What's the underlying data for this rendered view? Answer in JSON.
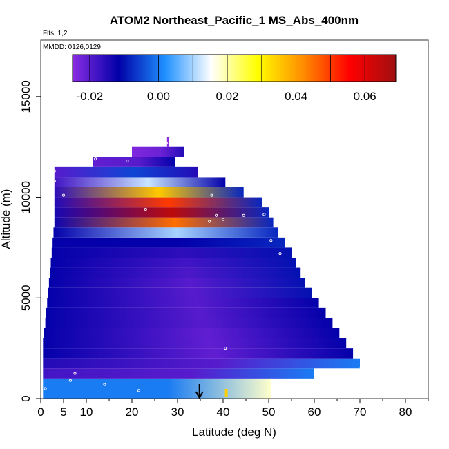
{
  "chart_data": {
    "type": "heatmap",
    "title": "ATOM2 Northeast_Pacific_1 MS_Abs_400nm",
    "annotations": [
      "Flts: 1,2",
      "MMDD: 0126,0129"
    ],
    "xlabel": "Latitude (deg N)",
    "ylabel": "Altitude (m)",
    "xlim": [
      0,
      85
    ],
    "ylim": [
      0,
      17500
    ],
    "xticks": [
      0,
      5,
      10,
      20,
      30,
      40,
      50,
      60,
      70,
      80
    ],
    "xtick_labels": [
      "0",
      "5",
      "10",
      "20",
      "30",
      "40",
      "50",
      "60",
      "70",
      "80"
    ],
    "yticks": [
      0,
      5000,
      10000,
      15000
    ],
    "ytick_labels": [
      "0",
      "5000",
      "10000",
      "15000"
    ],
    "colorbar": {
      "range": [
        -0.025,
        0.069
      ],
      "ticks": [
        -0.02,
        0.0,
        0.02,
        0.04,
        0.06
      ],
      "tick_labels": [
        "-0.02",
        "0.00",
        "0.02",
        "0.04",
        "0.06"
      ],
      "colors": [
        "#8a2be2",
        "#0000a8",
        "#1e90ff",
        "#ffffff",
        "#ffff00",
        "#ff8c00",
        "#ff0000",
        "#a01010"
      ]
    },
    "rows": [
      {
        "alt_min": 0,
        "alt_max": 1000,
        "lat_min": 0.5,
        "lat_max": 50.5,
        "v_south": 0.0,
        "v_mid": 0.0,
        "v_north": 0.018
      },
      {
        "alt_min": 1000,
        "alt_max": 1500,
        "lat_min": 0.5,
        "lat_max": 60,
        "v_south": -0.018,
        "v_mid": -0.02,
        "v_north": 0.0
      },
      {
        "alt_min": 1500,
        "alt_max": 2000,
        "lat_min": 0.5,
        "lat_max": 70,
        "v_south": -0.015,
        "v_mid": -0.02,
        "v_north": 0.0
      },
      {
        "alt_min": 2000,
        "alt_max": 2500,
        "lat_min": 0.5,
        "lat_max": 68.5,
        "v_south": -0.012,
        "v_mid": -0.021,
        "v_north": -0.012
      },
      {
        "alt_min": 2500,
        "alt_max": 3000,
        "lat_min": 0.5,
        "lat_max": 67,
        "v_south": -0.012,
        "v_mid": -0.021,
        "v_north": -0.012
      },
      {
        "alt_min": 3000,
        "alt_max": 3500,
        "lat_min": 0.7,
        "lat_max": 65.5,
        "v_south": -0.012,
        "v_mid": -0.021,
        "v_north": -0.012
      },
      {
        "alt_min": 3500,
        "alt_max": 4000,
        "lat_min": 1.0,
        "lat_max": 64,
        "v_south": -0.012,
        "v_mid": -0.02,
        "v_north": -0.012
      },
      {
        "alt_min": 4000,
        "alt_max": 4500,
        "lat_min": 1.2,
        "lat_max": 62.5,
        "v_south": -0.012,
        "v_mid": -0.02,
        "v_north": -0.012
      },
      {
        "alt_min": 4500,
        "alt_max": 5000,
        "lat_min": 1.4,
        "lat_max": 61,
        "v_south": -0.012,
        "v_mid": -0.02,
        "v_north": -0.012
      },
      {
        "alt_min": 5000,
        "alt_max": 5500,
        "lat_min": 1.6,
        "lat_max": 59.5,
        "v_south": -0.012,
        "v_mid": -0.02,
        "v_north": -0.01
      },
      {
        "alt_min": 5500,
        "alt_max": 6000,
        "lat_min": 1.8,
        "lat_max": 58,
        "v_south": -0.012,
        "v_mid": -0.02,
        "v_north": -0.01
      },
      {
        "alt_min": 6000,
        "alt_max": 6500,
        "lat_min": 2.0,
        "lat_max": 57,
        "v_south": -0.012,
        "v_mid": -0.019,
        "v_north": -0.01
      },
      {
        "alt_min": 6500,
        "alt_max": 7000,
        "lat_min": 2.2,
        "lat_max": 56,
        "v_south": -0.012,
        "v_mid": -0.018,
        "v_north": -0.01
      },
      {
        "alt_min": 7000,
        "alt_max": 7500,
        "lat_min": 2.4,
        "lat_max": 55,
        "v_south": -0.012,
        "v_mid": -0.016,
        "v_north": -0.01
      },
      {
        "alt_min": 7500,
        "alt_max": 8000,
        "lat_min": 2.6,
        "lat_max": 53.5,
        "v_south": -0.012,
        "v_mid": -0.012,
        "v_north": -0.008
      },
      {
        "alt_min": 8000,
        "alt_max": 8500,
        "lat_min": 2.8,
        "lat_max": 52,
        "v_south": -0.012,
        "v_mid": 0.01,
        "v_north": -0.008
      },
      {
        "alt_min": 8500,
        "alt_max": 9000,
        "lat_min": 3.0,
        "lat_max": 51,
        "v_south": -0.013,
        "v_mid": 0.045,
        "v_north": -0.008
      },
      {
        "alt_min": 9000,
        "alt_max": 9500,
        "lat_min": 3.0,
        "lat_max": 50,
        "v_south": -0.014,
        "v_mid": 0.065,
        "v_north": -0.008
      },
      {
        "alt_min": 9500,
        "alt_max": 10000,
        "lat_min": 3.0,
        "lat_max": 48.5,
        "v_south": -0.015,
        "v_mid": 0.05,
        "v_north": -0.008
      },
      {
        "alt_min": 10000,
        "alt_max": 10500,
        "lat_min": 3.0,
        "lat_max": 44.5,
        "v_south": -0.016,
        "v_mid": 0.035,
        "v_north": -0.008
      },
      {
        "alt_min": 10500,
        "alt_max": 11000,
        "lat_min": 3.0,
        "lat_max": 40.5,
        "v_south": -0.018,
        "v_mid": 0.012,
        "v_north": -0.012
      },
      {
        "alt_min": 11000,
        "alt_max": 11500,
        "lat_min": 3.0,
        "lat_max": 34.5,
        "v_south": -0.02,
        "v_mid": -0.005,
        "v_north": -0.015
      },
      {
        "alt_min": 11500,
        "alt_max": 12000,
        "lat_min": 11.5,
        "lat_max": 29.5,
        "v_south": -0.021,
        "v_mid": -0.02,
        "v_north": -0.012
      },
      {
        "alt_min": 12000,
        "alt_max": 12500,
        "lat_min": 20.0,
        "lat_max": 31.5,
        "v_south": -0.024,
        "v_mid": -0.022,
        "v_north": -0.015
      },
      {
        "alt_min": 12500,
        "alt_max": 13000,
        "lat_min": 27.7,
        "lat_max": 28.1,
        "v_south": -0.025,
        "v_mid": -0.025,
        "v_north": -0.025
      }
    ],
    "sample_points": [
      {
        "lat": 1.0,
        "alt": 500
      },
      {
        "lat": 6.5,
        "alt": 900
      },
      {
        "lat": 14.0,
        "alt": 700
      },
      {
        "lat": 21.5,
        "alt": 400
      },
      {
        "lat": 7.5,
        "alt": 1250
      },
      {
        "lat": 40.5,
        "alt": 2500
      },
      {
        "lat": 70.0,
        "alt": 1500
      },
      {
        "lat": 52.5,
        "alt": 7200
      },
      {
        "lat": 50.5,
        "alt": 7850
      },
      {
        "lat": 49.0,
        "alt": 9150
      },
      {
        "lat": 44.5,
        "alt": 9100
      },
      {
        "lat": 40.0,
        "alt": 8900
      },
      {
        "lat": 38.5,
        "alt": 9100
      },
      {
        "lat": 37.5,
        "alt": 10100
      },
      {
        "lat": 23.0,
        "alt": 9400
      },
      {
        "lat": 5.0,
        "alt": 10100
      },
      {
        "lat": 3.0,
        "alt": 10800
      },
      {
        "lat": 3.0,
        "alt": 11300
      },
      {
        "lat": 12.0,
        "alt": 11900
      },
      {
        "lat": 19.0,
        "alt": 11800
      },
      {
        "lat": 28.0,
        "alt": 12700
      },
      {
        "lat": 37.0,
        "alt": 8800
      }
    ],
    "markers": [
      {
        "kind": "arrow",
        "lat": 34.8,
        "alt": 0
      },
      {
        "kind": "bar",
        "lat": 40.7,
        "alt": 0,
        "color": "#ffd000"
      }
    ]
  }
}
